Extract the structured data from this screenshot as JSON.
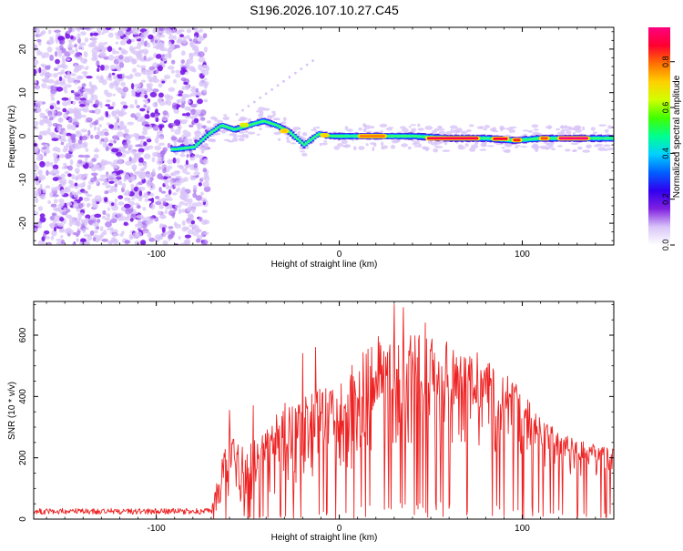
{
  "title": "S196.2026.107.10.27.C45",
  "chart_data": [
    {
      "type": "heatmap",
      "name": "spectrogram",
      "xlabel": "Height of straight line (km)",
      "ylabel": "Frequency (Hz)",
      "xlim": [
        -167,
        150
      ],
      "ylim": [
        -25,
        25
      ],
      "xticks": [
        -100,
        0,
        100
      ],
      "yticks": [
        -20,
        -10,
        0,
        10,
        20
      ],
      "xtick_labels": [
        "-100",
        "0",
        "100"
      ],
      "ytick_labels": [
        "-20",
        "-10",
        "0",
        "10",
        "20"
      ],
      "colorbar": {
        "label": "Normalized spectral amplitude",
        "range": [
          0,
          0.95
        ],
        "ticks": [
          0.0,
          0.2,
          0.4,
          0.6,
          0.8
        ],
        "tick_labels": [
          "0.0",
          "0.2",
          "0.4",
          "0.6",
          "0.8"
        ],
        "colors": [
          "#ffffff",
          "#d8c4f8",
          "#8020e0",
          "#3000f0",
          "#0060ff",
          "#00d0ff",
          "#00ff90",
          "#40ff00",
          "#d0ff00",
          "#ffd000",
          "#ff7000",
          "#ff0030",
          "#ff0080"
        ]
      },
      "noise_region_x": [
        -167,
        -75
      ],
      "ridge": [
        {
          "x": -90,
          "y": -3,
          "amp": 0.5
        },
        {
          "x": -80,
          "y": -2.5,
          "amp": 0.55
        },
        {
          "x": -72,
          "y": 0.5,
          "amp": 0.45
        },
        {
          "x": -65,
          "y": 2.5,
          "amp": 0.5
        },
        {
          "x": -58,
          "y": 1.5,
          "amp": 0.6
        },
        {
          "x": -50,
          "y": 2.5,
          "amp": 0.55
        },
        {
          "x": -42,
          "y": 3.5,
          "amp": 0.55
        },
        {
          "x": -35,
          "y": 2.5,
          "amp": 0.6
        },
        {
          "x": -28,
          "y": 1.0,
          "amp": 0.7
        },
        {
          "x": -20,
          "y": -2.0,
          "amp": 0.6
        },
        {
          "x": -12,
          "y": 0.5,
          "amp": 0.6
        },
        {
          "x": -5,
          "y": 0.0,
          "amp": 0.7
        },
        {
          "x": 5,
          "y": 0.0,
          "amp": 0.75
        },
        {
          "x": 20,
          "y": 0.0,
          "amp": 0.8
        },
        {
          "x": 40,
          "y": 0.0,
          "amp": 0.8
        },
        {
          "x": 60,
          "y": -0.5,
          "amp": 0.9
        },
        {
          "x": 80,
          "y": -0.5,
          "amp": 0.95
        },
        {
          "x": 95,
          "y": -1.0,
          "amp": 0.85
        },
        {
          "x": 110,
          "y": -0.5,
          "amp": 0.85
        },
        {
          "x": 130,
          "y": -0.5,
          "amp": 0.95
        },
        {
          "x": 150,
          "y": -0.5,
          "amp": 0.85
        }
      ]
    },
    {
      "type": "line",
      "name": "snr",
      "xlabel": "Height of straight line (km)",
      "ylabel": "SNR (10 * v/v)",
      "xlim": [
        -167,
        150
      ],
      "ylim": [
        0,
        710
      ],
      "xticks": [
        -100,
        0,
        100
      ],
      "yticks": [
        0,
        200,
        400,
        600
      ],
      "xtick_labels": [
        "-100",
        "0",
        "100"
      ],
      "ytick_labels": [
        "0",
        "200",
        "400",
        "600"
      ],
      "color": "#ee2222",
      "envelope": [
        {
          "x": -167,
          "lo": 5,
          "hi": 35
        },
        {
          "x": -70,
          "lo": 5,
          "hi": 35
        },
        {
          "x": -65,
          "lo": 40,
          "hi": 180
        },
        {
          "x": -60,
          "lo": 50,
          "hi": 280
        },
        {
          "x": -50,
          "lo": 60,
          "hi": 240
        },
        {
          "x": -40,
          "lo": 70,
          "hi": 300
        },
        {
          "x": -30,
          "lo": 90,
          "hi": 380
        },
        {
          "x": -20,
          "lo": 100,
          "hi": 400
        },
        {
          "x": -10,
          "lo": 130,
          "hi": 430
        },
        {
          "x": 0,
          "lo": 150,
          "hi": 480
        },
        {
          "x": 10,
          "lo": 170,
          "hi": 530
        },
        {
          "x": 20,
          "lo": 200,
          "hi": 590
        },
        {
          "x": 30,
          "lo": 220,
          "hi": 640
        },
        {
          "x": 40,
          "lo": 230,
          "hi": 610
        },
        {
          "x": 50,
          "lo": 230,
          "hi": 600
        },
        {
          "x": 60,
          "lo": 230,
          "hi": 580
        },
        {
          "x": 70,
          "lo": 230,
          "hi": 560
        },
        {
          "x": 80,
          "lo": 220,
          "hi": 530
        },
        {
          "x": 90,
          "lo": 210,
          "hi": 480
        },
        {
          "x": 100,
          "lo": 200,
          "hi": 440
        },
        {
          "x": 110,
          "lo": 170,
          "hi": 330
        },
        {
          "x": 120,
          "lo": 150,
          "hi": 290
        },
        {
          "x": 130,
          "lo": 140,
          "hi": 260
        },
        {
          "x": 140,
          "lo": 130,
          "hi": 250
        },
        {
          "x": 150,
          "lo": 130,
          "hi": 240
        }
      ],
      "spikes": [
        {
          "x": -60,
          "y": 355
        },
        {
          "x": -47,
          "y": 370
        },
        {
          "x": -20,
          "y": 540
        },
        {
          "x": -13,
          "y": 560
        },
        {
          "x": 30,
          "y": 700
        },
        {
          "x": 35,
          "y": 690
        },
        {
          "x": 47,
          "y": 640
        }
      ]
    }
  ]
}
